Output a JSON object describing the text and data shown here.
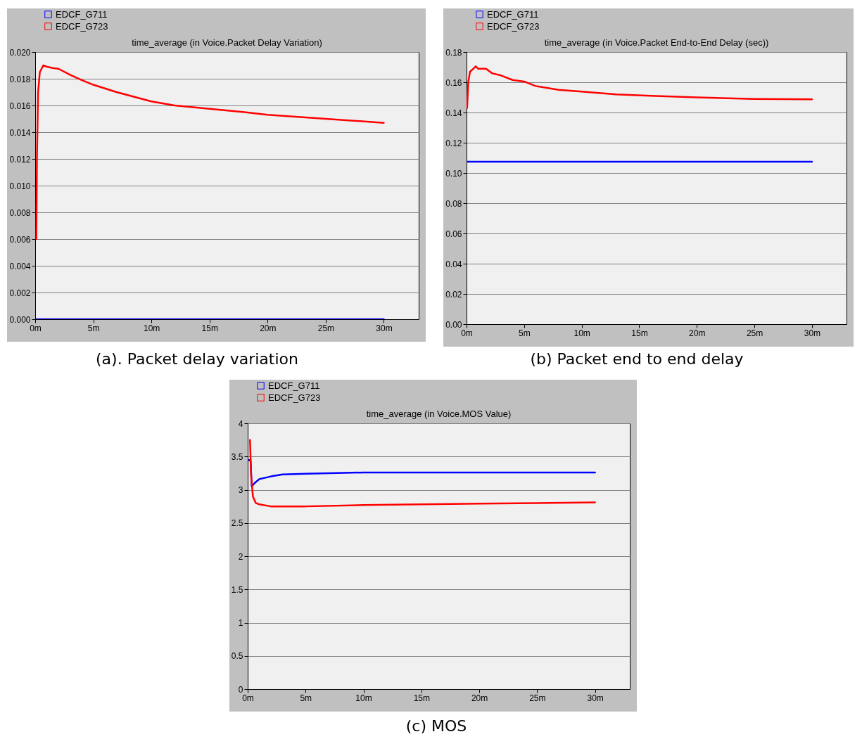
{
  "chart_data": [
    {
      "type": "line",
      "title": "time_average (in Voice.Packet Delay Variation)",
      "annotations": [
        "(a). Packet delay variation"
      ],
      "legend": "top left",
      "grid": "y",
      "marker": "none",
      "line_style": "solid",
      "xlim": [
        0,
        33
      ],
      "xticks": [
        {
          "value": 0,
          "label": "0m"
        },
        {
          "value": 5,
          "label": "5m"
        },
        {
          "value": 10,
          "label": "10m"
        },
        {
          "value": 15,
          "label": "15m"
        },
        {
          "value": 20,
          "label": "20m"
        },
        {
          "value": 25,
          "label": "25m"
        },
        {
          "value": 30,
          "label": "30m"
        }
      ],
      "ylim": [
        0,
        0.02
      ],
      "yticks": [
        {
          "value": 0,
          "label": "0.000"
        },
        {
          "value": 0.002,
          "label": "0.002"
        },
        {
          "value": 0.004,
          "label": "0.004"
        },
        {
          "value": 0.006,
          "label": "0.006"
        },
        {
          "value": 0.008,
          "label": "0.008"
        },
        {
          "value": 0.01,
          "label": "0.010"
        },
        {
          "value": 0.012,
          "label": "0.012"
        },
        {
          "value": 0.014,
          "label": "0.014"
        },
        {
          "value": 0.016,
          "label": "0.016"
        },
        {
          "value": 0.018,
          "label": "0.018"
        },
        {
          "value": 0.02,
          "label": "0.020"
        }
      ],
      "series": [
        {
          "name": "EDCF_G711",
          "color": "#0000ff",
          "x": [
            0.1,
            5,
            10,
            15,
            20,
            25,
            30
          ],
          "values": [
            0,
            0,
            0,
            0,
            0,
            0,
            0
          ]
        },
        {
          "name": "EDCF_G723",
          "color": "#ff0000",
          "x": [
            0.1,
            0.15,
            0.25,
            0.4,
            0.7,
            1,
            1.5,
            2,
            3,
            4,
            5,
            7,
            10,
            12,
            15,
            18,
            20,
            25,
            30
          ],
          "values": [
            0.006,
            0.012,
            0.017,
            0.0185,
            0.019,
            0.0189,
            0.0188,
            0.01875,
            0.0183,
            0.0179,
            0.01755,
            0.017,
            0.0163,
            0.016,
            0.01575,
            0.0155,
            0.0153,
            0.015,
            0.0147
          ]
        }
      ]
    },
    {
      "type": "line",
      "title": "time_average (in Voice.Packet End-to-End Delay (sec))",
      "annotations": [
        "(b) Packet end to end delay"
      ],
      "legend": "top left",
      "grid": "y",
      "marker": "none",
      "line_style": "solid",
      "xlim": [
        0,
        33
      ],
      "xticks": [
        {
          "value": 0,
          "label": "0m"
        },
        {
          "value": 5,
          "label": "5m"
        },
        {
          "value": 10,
          "label": "10m"
        },
        {
          "value": 15,
          "label": "15m"
        },
        {
          "value": 20,
          "label": "20m"
        },
        {
          "value": 25,
          "label": "25m"
        },
        {
          "value": 30,
          "label": "30m"
        }
      ],
      "ylim": [
        0,
        0.18
      ],
      "yticks": [
        {
          "value": 0,
          "label": "0.00"
        },
        {
          "value": 0.02,
          "label": "0.02"
        },
        {
          "value": 0.04,
          "label": "0.04"
        },
        {
          "value": 0.06,
          "label": "0.06"
        },
        {
          "value": 0.08,
          "label": "0.08"
        },
        {
          "value": 0.1,
          "label": "0.10"
        },
        0.12,
        0.14,
        0.16,
        0.18
      ],
      "series": [
        {
          "name": "EDCF_G711",
          "color": "#0000ff",
          "x": [
            0.1,
            5,
            10,
            15,
            20,
            25,
            30
          ],
          "values": [
            0.1075,
            0.1075,
            0.1075,
            0.1075,
            0.1075,
            0.1075,
            0.1075
          ]
        },
        {
          "name": "EDCF_G723",
          "color": "#ff0000",
          "x": [
            0.05,
            0.15,
            0.3,
            0.6,
            0.8,
            1,
            1.7,
            2.2,
            3,
            4,
            5,
            6,
            8,
            10,
            13,
            16,
            20,
            25,
            30
          ],
          "values": [
            0.143,
            0.16,
            0.167,
            0.169,
            0.1705,
            0.169,
            0.169,
            0.166,
            0.1645,
            0.1615,
            0.1605,
            0.1575,
            0.155,
            0.1538,
            0.152,
            0.151,
            0.15,
            0.149,
            0.1487
          ]
        }
      ]
    },
    {
      "type": "line",
      "title": "time_average (in Voice.MOS Value)",
      "annotations": [
        "(c) MOS"
      ],
      "legend": "top left",
      "grid": "y",
      "marker": "none",
      "line_style": "solid",
      "xlim": [
        0,
        33
      ],
      "xticks": [
        {
          "value": 0,
          "label": "0m"
        },
        {
          "value": 5,
          "label": "5m"
        },
        {
          "value": 10,
          "label": "10m"
        },
        {
          "value": 15,
          "label": "15m"
        },
        {
          "value": 20,
          "label": "20m"
        },
        {
          "value": 25,
          "label": "25m"
        },
        {
          "value": 30,
          "label": "30m"
        }
      ],
      "ylim": [
        0,
        4
      ],
      "yticks": [
        0,
        0.5,
        1,
        1.5,
        2,
        2.5,
        3,
        3.5,
        4
      ],
      "series": [
        {
          "name": "EDCF_G711",
          "color": "#0000ff",
          "x": [
            0.1,
            0.25,
            0.35,
            0.6,
            1,
            2,
            3,
            5,
            10,
            20,
            30
          ],
          "values": [
            3.45,
            3.43,
            3.05,
            3.1,
            3.16,
            3.2,
            3.23,
            3.24,
            3.26,
            3.26,
            3.26
          ]
        },
        {
          "name": "EDCF_G723",
          "color": "#ff0000",
          "x": [
            0.2,
            0.3,
            0.45,
            0.7,
            1,
            2,
            5,
            10,
            20,
            30
          ],
          "values": [
            3.75,
            3.2,
            2.9,
            2.8,
            2.78,
            2.75,
            2.75,
            2.77,
            2.79,
            2.81
          ]
        }
      ]
    }
  ]
}
